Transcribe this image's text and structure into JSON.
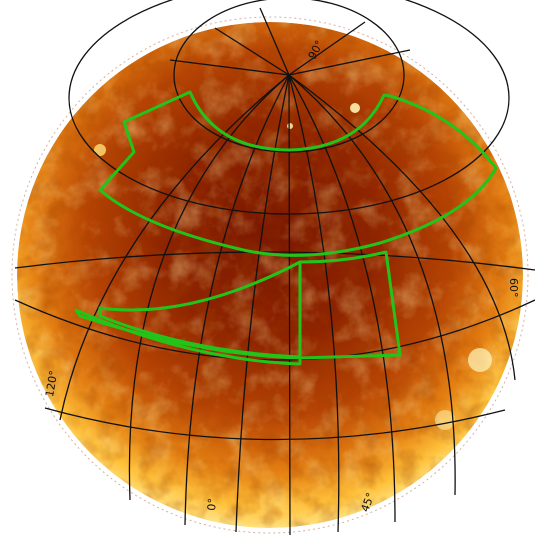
{
  "map": {
    "projection": "orthographic sky projection",
    "colormap": [
      "#fff7a6",
      "#ffd24a",
      "#f59a1a",
      "#cc5a08",
      "#9a2a02",
      "#6e1200"
    ],
    "grid_color": "#111111",
    "survey_outline_color": "#22c41a"
  },
  "labels": {
    "lon_top": "90°",
    "lon_right": "60°",
    "lon_left": "120°",
    "lon_bottom_center": "0°",
    "lon_bottom_right": "45°"
  }
}
